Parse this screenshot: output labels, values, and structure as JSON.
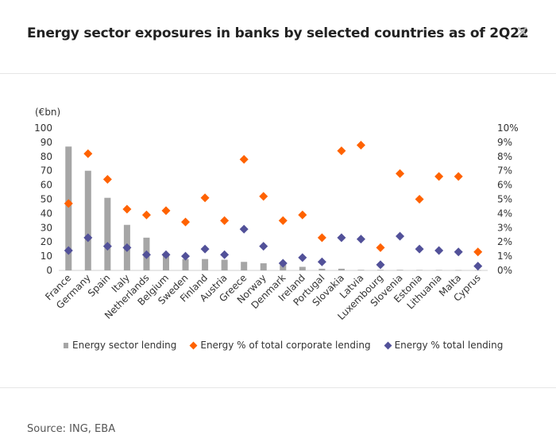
{
  "header": {
    "title": "Energy sector exposures in banks by selected countries as of 2Q22",
    "close_icon": "close-icon"
  },
  "footer": {
    "source": "Source: ING, EBA"
  },
  "legend": {
    "bars": "Energy sector lending",
    "corporate": "Energy % of total corporate lending",
    "total": "Energy % total lending"
  },
  "colors": {
    "bars": "#a6a6a6",
    "corporate": "#ff6200",
    "total": "#525199"
  },
  "chart_data": {
    "type": "bar",
    "unit_label": "(€bn)",
    "categories": [
      "France",
      "Germany",
      "Spain",
      "Italy",
      "Netherlands",
      "Belgium",
      "Sweden",
      "Finland",
      "Austria",
      "Greece",
      "Norway",
      "Denmark",
      "Ireland",
      "Portugal",
      "Slovakia",
      "Latvia",
      "Luxembourg",
      "Slovenia",
      "Estonia",
      "Lithuania",
      "Malta",
      "Cyprus"
    ],
    "left_axis": {
      "ylim": [
        0,
        100
      ],
      "ticks": [
        0,
        10,
        20,
        30,
        40,
        50,
        60,
        70,
        80,
        90,
        100
      ]
    },
    "right_axis": {
      "ylim": [
        0,
        10
      ],
      "ticks": [
        "0%",
        "1%",
        "2%",
        "3%",
        "4%",
        "5%",
        "6%",
        "7%",
        "8%",
        "9%",
        "10%"
      ]
    },
    "series": [
      {
        "name": "Energy sector lending",
        "type": "bar",
        "axis": "left",
        "values": [
          87,
          70,
          51,
          32,
          23,
          11,
          8,
          8,
          7.5,
          6,
          5,
          4,
          2.5,
          1.2,
          1.2,
          0.4,
          0.4,
          0.4,
          0.3,
          0.3,
          0.2,
          0.2
        ]
      },
      {
        "name": "Energy % of total corporate lending",
        "type": "scatter",
        "axis": "right",
        "marker": "diamond",
        "values": [
          4.7,
          8.2,
          6.4,
          4.3,
          3.9,
          4.2,
          3.4,
          5.1,
          3.5,
          7.8,
          5.2,
          3.5,
          3.9,
          2.3,
          8.4,
          8.8,
          1.6,
          6.8,
          5.0,
          6.6,
          6.6,
          1.3
        ]
      },
      {
        "name": "Energy % total lending",
        "type": "scatter",
        "axis": "right",
        "marker": "diamond",
        "values": [
          1.4,
          2.3,
          1.7,
          1.6,
          1.1,
          1.1,
          1.0,
          1.5,
          1.1,
          2.9,
          1.7,
          0.5,
          0.9,
          0.6,
          2.3,
          2.2,
          0.4,
          2.4,
          1.5,
          1.4,
          1.3,
          0.3
        ]
      }
    ],
    "grid": false,
    "legend_position": "bottom"
  }
}
